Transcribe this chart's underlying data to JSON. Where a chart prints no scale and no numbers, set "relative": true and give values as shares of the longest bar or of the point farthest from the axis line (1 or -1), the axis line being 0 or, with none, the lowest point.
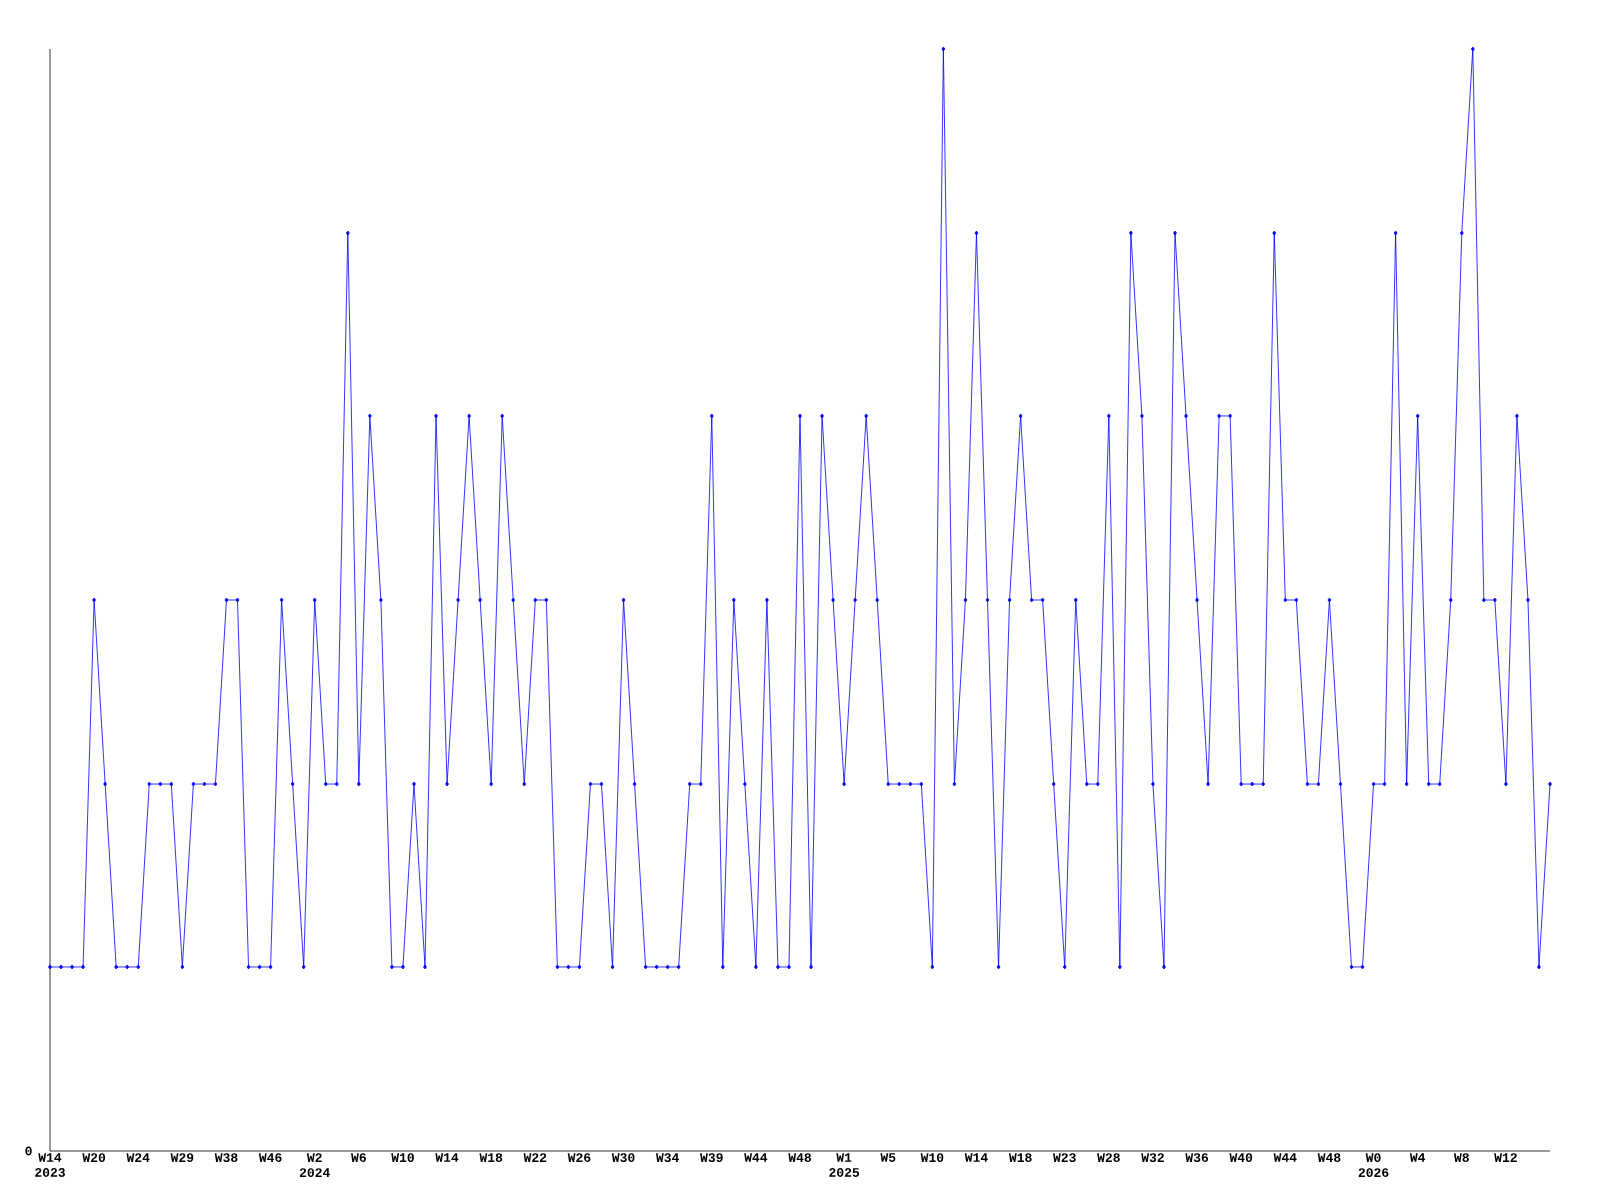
{
  "chart_data": {
    "type": "line",
    "relative": true,
    "color": "#0000ff",
    "marker": "diamond",
    "categories": [
      "W14 2023",
      null,
      null,
      null,
      "W20",
      null,
      null,
      null,
      "W24",
      null,
      null,
      null,
      "W29",
      null,
      null,
      null,
      "W38",
      null,
      null,
      null,
      "W46",
      null,
      null,
      null,
      "W2 2024",
      null,
      null,
      null,
      "W6",
      null,
      null,
      null,
      "W10",
      null,
      null,
      null,
      "W14",
      null,
      null,
      null,
      "W18",
      null,
      null,
      null,
      "W22",
      null,
      null,
      null,
      "W26",
      null,
      null,
      null,
      "W30",
      null,
      null,
      null,
      "W34",
      null,
      null,
      null,
      "W39",
      null,
      null,
      null,
      "W44",
      null,
      null,
      null,
      "W48",
      null,
      null,
      null,
      "W1 2025",
      null,
      null,
      null,
      "W5",
      null,
      null,
      null,
      "W10",
      null,
      null,
      null,
      "W14",
      null,
      null,
      null,
      "W18",
      null,
      null,
      null,
      "W23",
      null,
      null,
      null,
      "W28",
      null,
      null,
      null,
      "W32",
      null,
      null,
      null,
      "W36",
      null,
      null,
      null,
      "W40",
      null,
      null,
      null,
      "W44",
      null,
      null,
      null,
      "W48",
      null,
      null,
      null,
      "W0 2026",
      null,
      null,
      null,
      "W4",
      null,
      null,
      null,
      "W8",
      null,
      null,
      null,
      "W12",
      null,
      null,
      null,
      null
    ],
    "values": [
      0.167,
      0.167,
      0.167,
      0.167,
      0.5,
      0.333,
      0.167,
      0.167,
      0.167,
      0.333,
      0.333,
      0.333,
      0.167,
      0.333,
      0.333,
      0.333,
      0.5,
      0.5,
      0.167,
      0.167,
      0.167,
      0.5,
      0.333,
      0.167,
      0.5,
      0.333,
      0.333,
      0.833,
      0.333,
      0.667,
      0.5,
      0.167,
      0.167,
      0.333,
      0.167,
      0.667,
      0.333,
      0.5,
      0.667,
      0.5,
      0.333,
      0.667,
      0.5,
      0.333,
      0.5,
      0.5,
      0.167,
      0.167,
      0.167,
      0.333,
      0.333,
      0.167,
      0.5,
      0.333,
      0.167,
      0.167,
      0.167,
      0.167,
      0.333,
      0.333,
      0.667,
      0.167,
      0.5,
      0.333,
      0.167,
      0.5,
      0.167,
      0.167,
      0.667,
      0.167,
      0.667,
      0.5,
      0.333,
      0.5,
      0.667,
      0.5,
      0.333,
      0.333,
      0.333,
      0.333,
      0.167,
      1,
      0.333,
      0.5,
      0.833,
      0.5,
      0.167,
      0.5,
      0.667,
      0.5,
      0.5,
      0.333,
      0.167,
      0.5,
      0.333,
      0.333,
      0.667,
      0.167,
      0.833,
      0.667,
      0.333,
      0.167,
      0.833,
      0.667,
      0.5,
      0.333,
      0.667,
      0.667,
      0.333,
      0.333,
      0.333,
      0.833,
      0.5,
      0.5,
      0.333,
      0.333,
      0.5,
      0.333,
      0.167,
      0.167,
      0.333,
      0.333,
      0.833,
      0.333,
      0.667,
      0.333,
      0.333,
      0.5,
      0.833,
      1,
      0.5,
      0.5,
      0.333,
      0.667,
      0.5,
      0.167,
      0.333
    ],
    "annotations": [
      "0"
    ]
  }
}
